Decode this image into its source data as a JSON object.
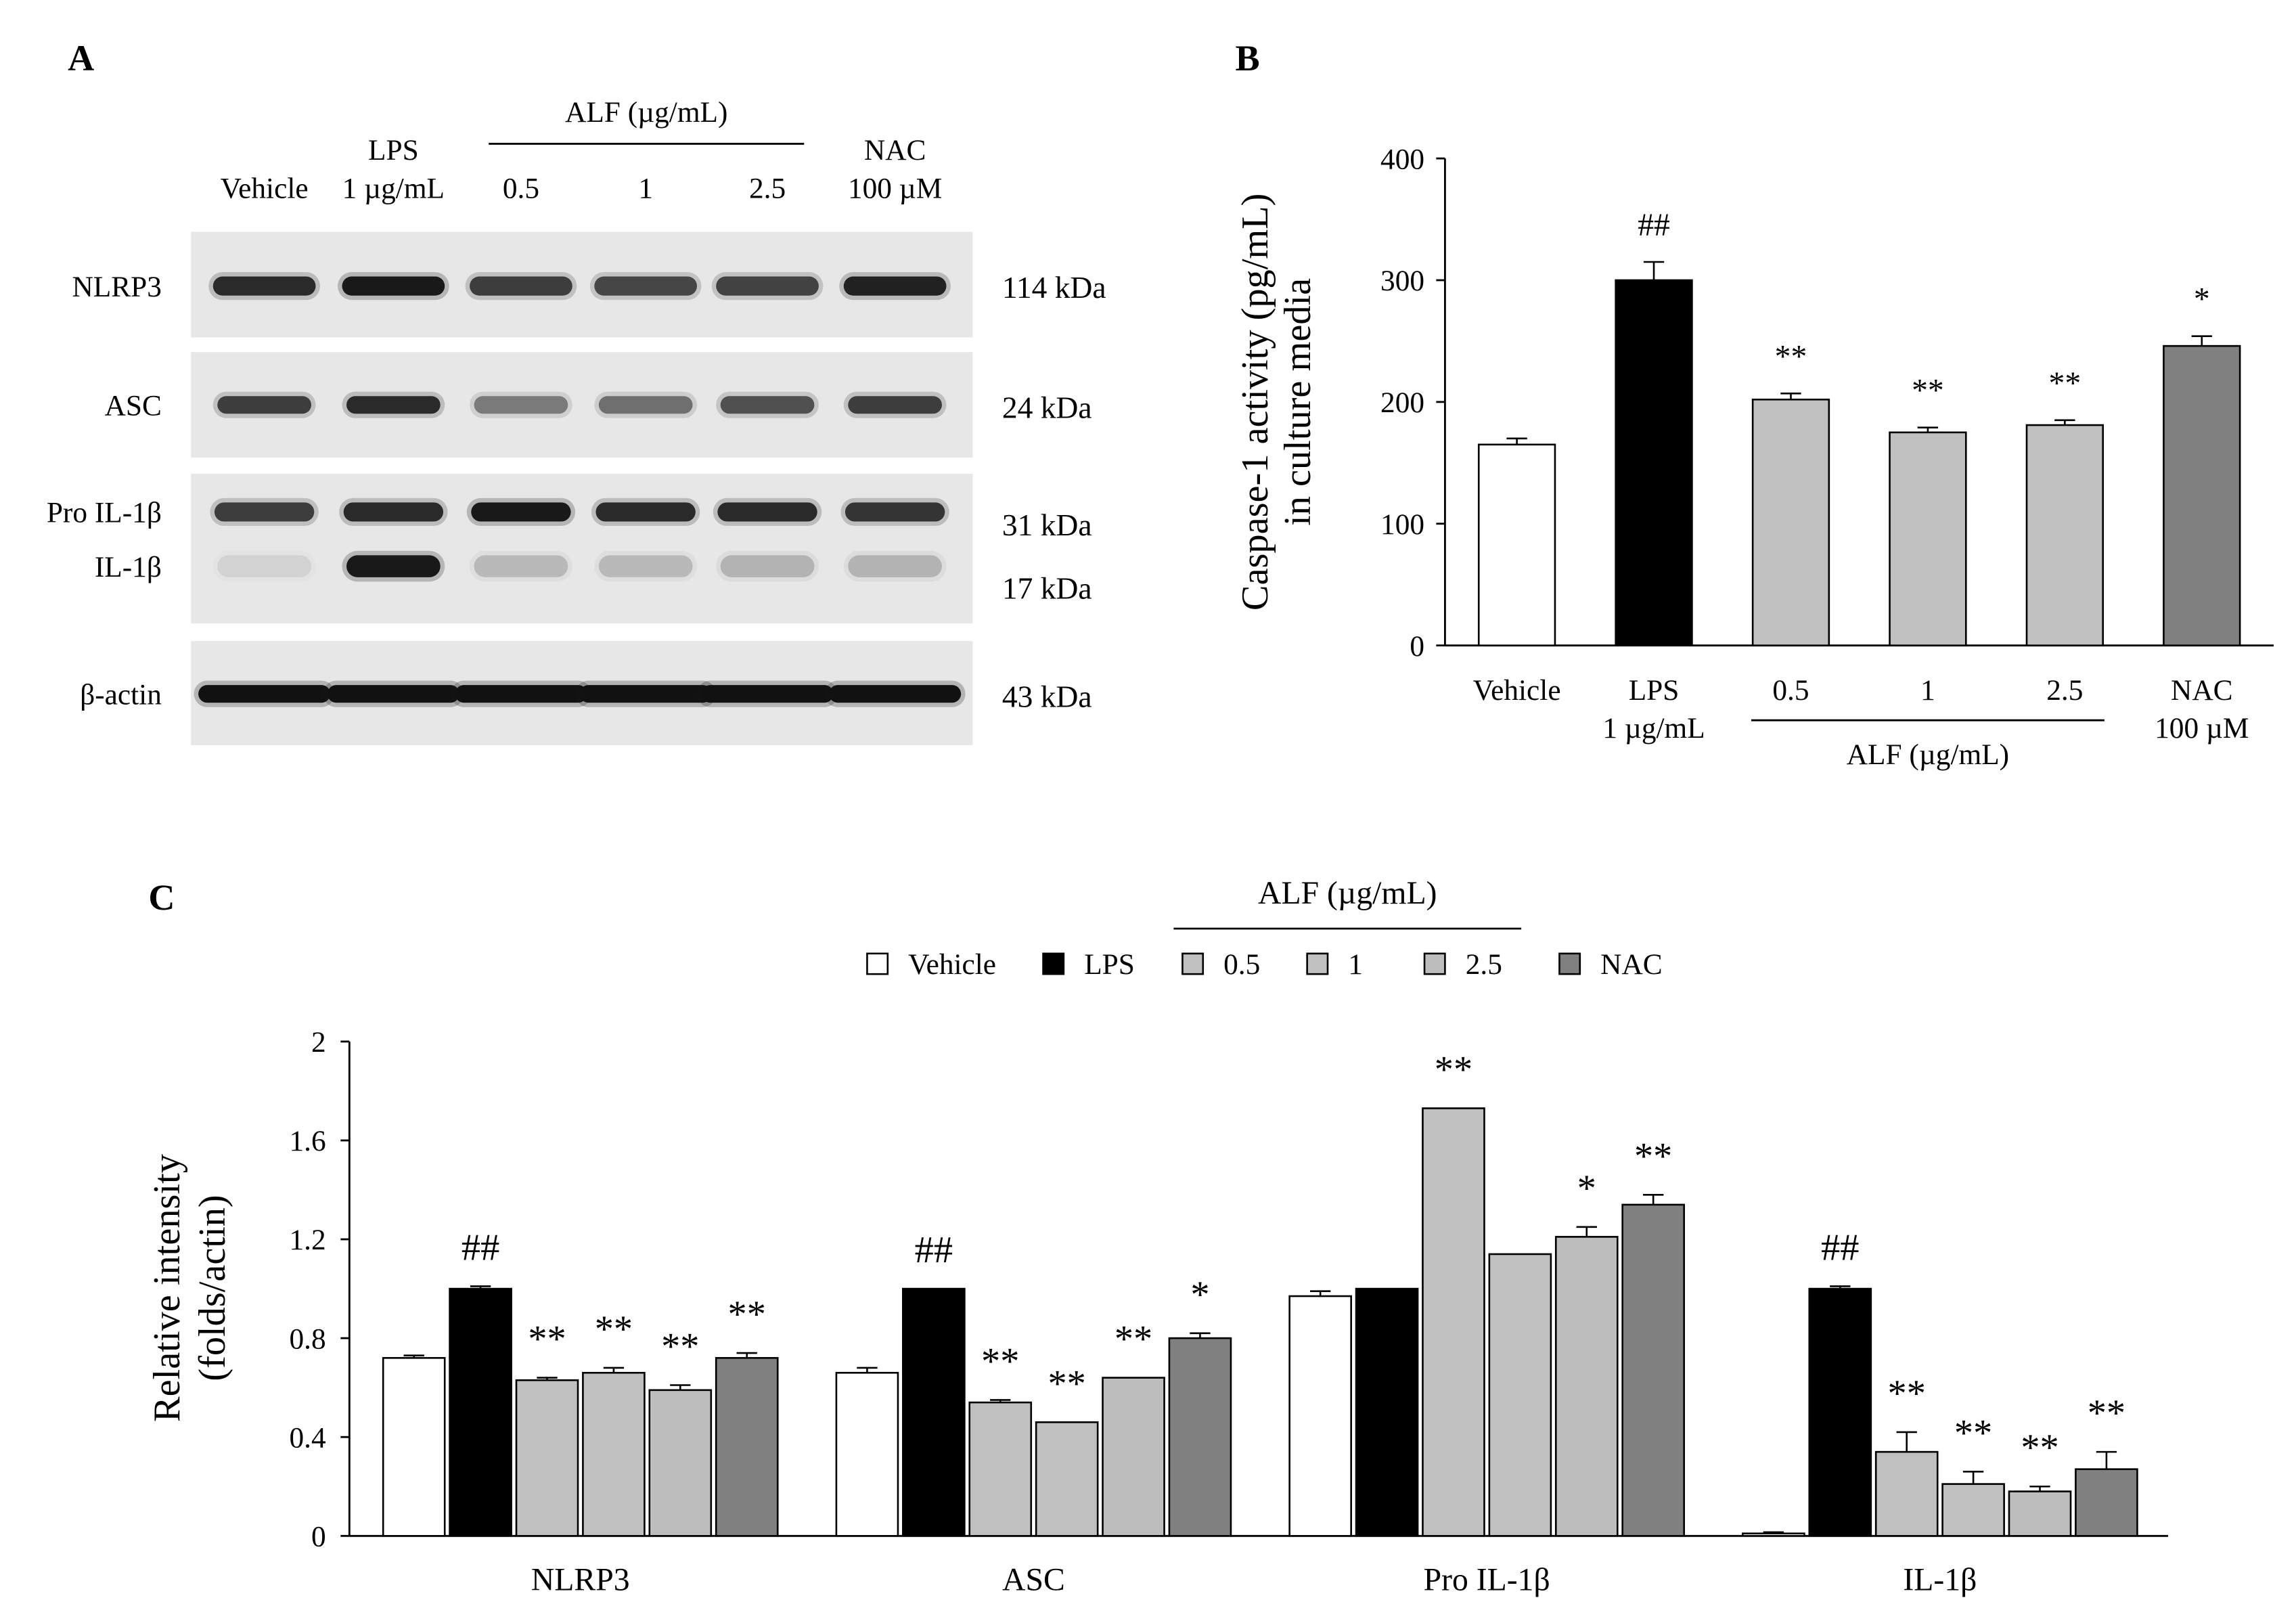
{
  "panel_a": {
    "panel_label": "A",
    "treatment_group": {
      "label": "ALF (µg/mL)",
      "first_lane": 2,
      "last_lane": 4
    },
    "lanes": [
      [
        "Vehicle"
      ],
      [
        "LPS",
        "1 µg/mL"
      ],
      [
        "0.5"
      ],
      [
        "1"
      ],
      [
        "2.5"
      ],
      [
        "NAC",
        "100 µM"
      ]
    ],
    "blots": [
      {
        "rows": [
          {
            "protein": "NLRP3",
            "size": "114 kDa",
            "band_intensity": [
              0.85,
              0.95,
              0.75,
              0.7,
              0.72,
              0.9
            ]
          }
        ]
      },
      {
        "rows": [
          {
            "protein": "ASC",
            "size": "24 kDa",
            "band_intensity": [
              0.75,
              0.85,
              0.45,
              0.5,
              0.65,
              0.75
            ]
          }
        ]
      },
      {
        "rows": [
          {
            "protein": "Pro IL-1β",
            "size": "31 kDa",
            "band_intensity": [
              0.75,
              0.85,
              0.95,
              0.85,
              0.85,
              0.8
            ]
          },
          {
            "protein": "IL-1β",
            "size": "17 kDa",
            "band_intensity": [
              0.08,
              0.95,
              0.18,
              0.18,
              0.2,
              0.2
            ]
          }
        ]
      },
      {
        "rows": [
          {
            "protein": "β-actin",
            "size": "43 kDa",
            "band_intensity": [
              1,
              1,
              1,
              1,
              1,
              1
            ]
          }
        ]
      }
    ]
  },
  "chart_data": [
    {
      "panel_label": "B",
      "type": "bar",
      "categories": [
        [
          "Vehicle"
        ],
        [
          "LPS",
          "1 µg/mL"
        ],
        [
          "0.5"
        ],
        [
          "1"
        ],
        [
          "2.5"
        ],
        [
          "NAC",
          "100 µM"
        ]
      ],
      "category_group": {
        "label": "ALF (µg/mL)",
        "first": 2,
        "last": 4
      },
      "values": [
        165,
        300,
        202,
        175,
        181,
        246
      ],
      "errors": [
        5,
        15,
        5,
        4,
        4,
        8
      ],
      "significance": [
        "",
        "##",
        "**",
        "**",
        "**",
        "*"
      ],
      "colors": [
        "#ffffff",
        "#000000",
        "#c0c0c0",
        "#c0c0c0",
        "#c0c0c0",
        "#808080"
      ],
      "ylabel": [
        "Caspase-1 activity (pg/mL)",
        "in culture media"
      ],
      "ylim": [
        0,
        400
      ],
      "yticks": [
        0,
        100,
        200,
        300,
        400
      ],
      "grid": false
    },
    {
      "panel_label": "C",
      "type": "bar",
      "categories": [
        "NLRP3",
        "ASC",
        "Pro IL-1β",
        "IL-1β"
      ],
      "series": [
        {
          "name": "Vehicle",
          "color": "#ffffff",
          "values": [
            0.72,
            0.66,
            0.97,
            0.01
          ],
          "errors": [
            0.01,
            0.02,
            0.02,
            0.005
          ],
          "significance": [
            "",
            "",
            "",
            ""
          ]
        },
        {
          "name": "LPS",
          "color": "#000000",
          "values": [
            1.0,
            1.0,
            1.0,
            1.0
          ],
          "errors": [
            0.01,
            0,
            0,
            0.01
          ],
          "significance": [
            "##",
            "##",
            "",
            "##"
          ]
        },
        {
          "name": "0.5",
          "color": "#c0c0c0",
          "values": [
            0.63,
            0.54,
            1.73,
            0.34
          ],
          "errors": [
            0.01,
            0.01,
            0,
            0.08
          ],
          "significance": [
            "**",
            "**",
            "**",
            "**"
          ]
        },
        {
          "name": "1",
          "color": "#c0c0c0",
          "values": [
            0.66,
            0.46,
            1.14,
            0.21
          ],
          "errors": [
            0.02,
            0,
            0,
            0.05
          ],
          "significance": [
            "**",
            "**",
            "",
            "**"
          ]
        },
        {
          "name": "2.5",
          "color": "#bdbdbd",
          "values": [
            0.59,
            0.64,
            1.21,
            0.18
          ],
          "errors": [
            0.02,
            0,
            0.04,
            0.02
          ],
          "significance": [
            "**",
            "**",
            "*",
            "**"
          ]
        },
        {
          "name": "NAC",
          "color": "#808080",
          "values": [
            0.72,
            0.8,
            1.34,
            0.27
          ],
          "errors": [
            0.02,
            0.02,
            0.04,
            0.07
          ],
          "significance": [
            "**",
            "*",
            "**",
            "**"
          ]
        }
      ],
      "legend_group": {
        "label": "ALF (µg/mL)",
        "first": 2,
        "last": 4
      },
      "ylabel": [
        "Relative intensity",
        "(folds/actin)"
      ],
      "ylim": [
        0,
        2
      ],
      "yticks": [
        0,
        0.4,
        0.8,
        1.2,
        1.6,
        2
      ],
      "legend": "top",
      "grid": false
    }
  ]
}
